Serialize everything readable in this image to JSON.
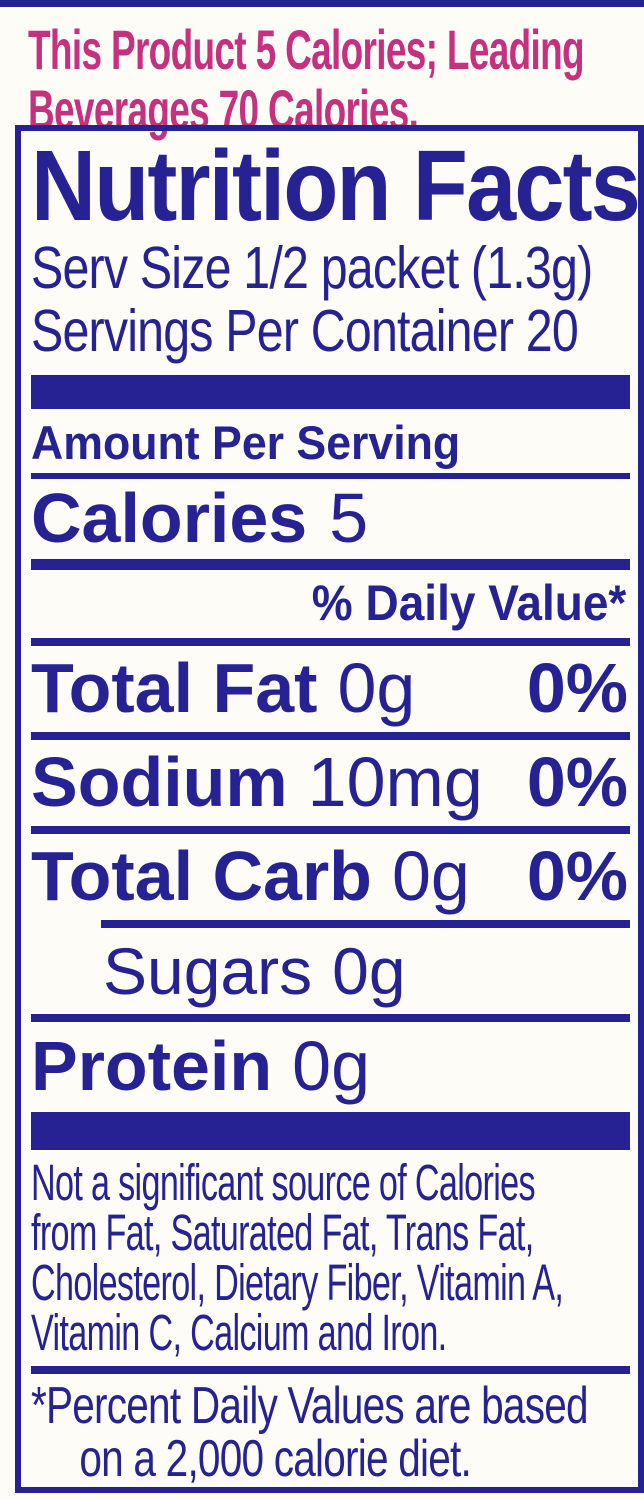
{
  "colors": {
    "navy": "#262293",
    "pink": "#c5317f",
    "background": "#fdfcf7"
  },
  "banner": {
    "lines": [
      "This Product 5 Calories; Leading",
      "Beverages 70 Calories."
    ]
  },
  "label": {
    "title": "Nutrition Facts",
    "serving_size": "Serv Size 1/2 packet (1.3g)",
    "servings_per_container": "Servings Per Container 20",
    "amount_per_serving": "Amount Per Serving",
    "calories": {
      "label": "Calories",
      "value": "5"
    },
    "daily_value_header": "% Daily Value*",
    "nutrients": [
      {
        "name": "Total Fat",
        "amount": "0g",
        "dv": "0%"
      },
      {
        "name": "Sodium",
        "amount": "10mg",
        "dv": "0%"
      },
      {
        "name": "Total Carb",
        "amount": "0g",
        "dv": "0%"
      },
      {
        "name": "Sugars",
        "amount": "0g",
        "dv": ""
      },
      {
        "name": "Protein",
        "amount": "0g",
        "dv": ""
      }
    ],
    "disclaimer_lines": [
      "Not a significant source of Calories",
      "from Fat, Saturated Fat, Trans Fat,",
      "Cholesterol, Dietary Fiber, Vitamin A,",
      "Vitamin C, Calcium and Iron."
    ],
    "footnote_lines": [
      "*Percent Daily Values are based",
      "on a 2,000 calorie diet."
    ]
  }
}
